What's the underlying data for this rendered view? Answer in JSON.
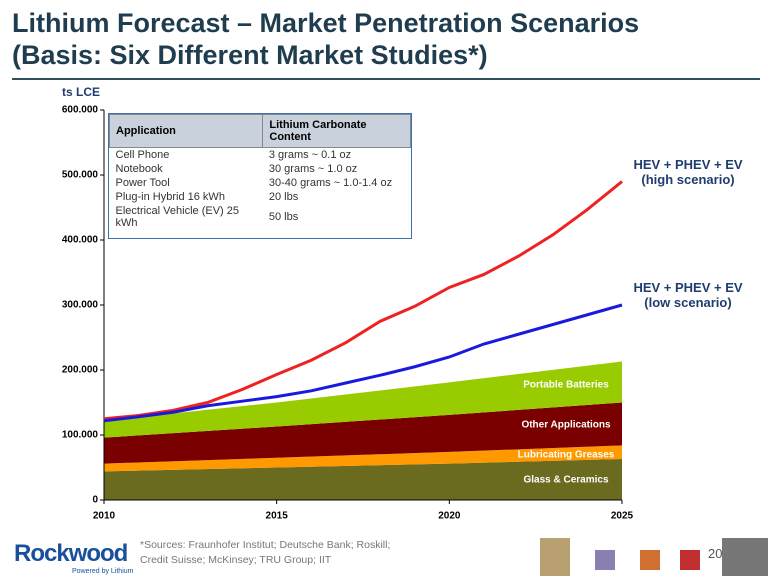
{
  "logo": {
    "name": "Rockwood",
    "tagline": "Powered by Lithium"
  },
  "page_number": "20",
  "footnote": "*Sources: Fraunhofer Institut; Deutsche Bank; Roskill; Credit Suisse; McKinsey; TRU Group; IIT",
  "chart_data": {
    "type": "area",
    "title": "Lithium Forecast – Market Penetration Scenarios",
    "subtitle": "(Basis: Six Different Market Studies*)",
    "y_label": "ts LCE",
    "xlim": [
      2010,
      2025
    ],
    "xticks": [
      2010,
      2015,
      2020,
      2025
    ],
    "ylim": [
      0,
      600000
    ],
    "yticks": [
      0,
      {
        "value": 100000,
        "label": "100.000"
      },
      {
        "value": 200000,
        "label": "200.000"
      },
      {
        "value": 300000,
        "label": "300.000"
      },
      {
        "value": 400000,
        "label": "400.000"
      },
      {
        "value": 500000,
        "label": "500.000"
      },
      {
        "value": 600000,
        "label": "600.000"
      }
    ],
    "series": [
      {
        "name": "Glass & Ceramics",
        "color": "#6b6b1f",
        "x": [
          2010,
          2015,
          2020,
          2025
        ],
        "values": [
          44000,
          50000,
          56000,
          63000
        ]
      },
      {
        "name": "Lubricating Greases",
        "color": "#ff9900",
        "x": [
          2010,
          2015,
          2020,
          2025
        ],
        "values": [
          12000,
          15000,
          18000,
          21000
        ]
      },
      {
        "name": "Other Applications",
        "color": "#7a0000",
        "x": [
          2010,
          2015,
          2020,
          2025
        ],
        "values": [
          40000,
          48000,
          57000,
          66000
        ]
      },
      {
        "name": "Portable Batteries",
        "color": "#99cc00",
        "x": [
          2010,
          2015,
          2020,
          2025
        ],
        "values": [
          26000,
          37000,
          50000,
          63000
        ]
      },
      {
        "name": "HEV + PHEV + EV (high scenario)",
        "type": "line",
        "color": "#ee2222",
        "x": [
          2010,
          2011,
          2012,
          2013,
          2014,
          2015,
          2016,
          2017,
          2018,
          2019,
          2020,
          2021,
          2022,
          2023,
          2024,
          2025
        ],
        "values": [
          125000,
          130000,
          138000,
          150000,
          170000,
          193000,
          215000,
          242000,
          275000,
          298000,
          327000,
          347000,
          375000,
          408000,
          447000,
          490000
        ]
      },
      {
        "name": "HEV + PHEV + EV (low scenario)",
        "type": "line",
        "color": "#1a1adf",
        "x": [
          2010,
          2011,
          2012,
          2013,
          2014,
          2015,
          2016,
          2017,
          2018,
          2019,
          2020,
          2021,
          2022,
          2023,
          2024,
          2025
        ],
        "values": [
          122000,
          128000,
          135000,
          145000,
          152000,
          159000,
          168000,
          180000,
          192000,
          205000,
          220000,
          240000,
          255000,
          270000,
          285000,
          300000
        ]
      }
    ],
    "inset_table": {
      "columns": [
        "Application",
        "Lithium Carbonate Content"
      ],
      "rows": [
        [
          "Cell Phone",
          "3 grams ~ 0.1 oz"
        ],
        [
          "Notebook",
          "30 grams ~ 1.0 oz"
        ],
        [
          "Power Tool",
          "30-40 grams ~ 1.0-1.4 oz"
        ],
        [
          "Plug-in Hybrid 16 kWh",
          "20 lbs"
        ],
        [
          "Electrical Vehicle (EV) 25 kWh",
          "50 lbs"
        ]
      ]
    }
  }
}
